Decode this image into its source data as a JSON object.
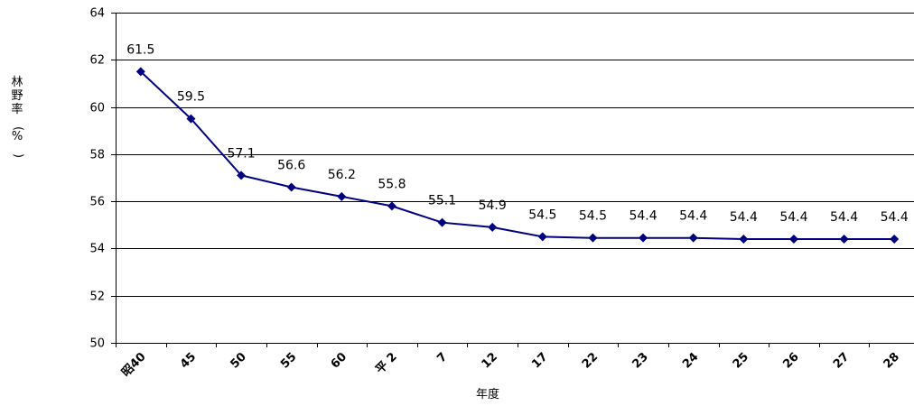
{
  "chart_data": {
    "type": "line",
    "categories": [
      "昭40",
      "45",
      "50",
      "55",
      "60",
      "平 2",
      "7",
      "12",
      "17",
      "22",
      "23",
      "24",
      "25",
      "26",
      "27",
      "28"
    ],
    "series": [
      {
        "values": [
          61.5,
          59.5,
          57.1,
          56.6,
          56.2,
          55.8,
          55.1,
          54.9,
          54.5,
          54.45,
          54.45,
          54.45,
          54.4,
          54.4,
          54.4,
          54.4
        ],
        "labels": [
          "61.5",
          "59.5",
          "57.1",
          "56.6",
          "56.2",
          "55.8",
          "55.1",
          "54.9",
          "54.5",
          "54.5",
          "54.4",
          "54.4",
          "54.4",
          "54.4",
          "54.4",
          "54.4"
        ],
        "color": "#000080"
      }
    ],
    "title": "",
    "xlabel": "年度",
    "ylabel": "林野率(%)",
    "ylim": [
      50,
      64
    ],
    "yticks": [
      50,
      52,
      54,
      56,
      58,
      60,
      62,
      64
    ],
    "grid": true,
    "legend": "none"
  }
}
